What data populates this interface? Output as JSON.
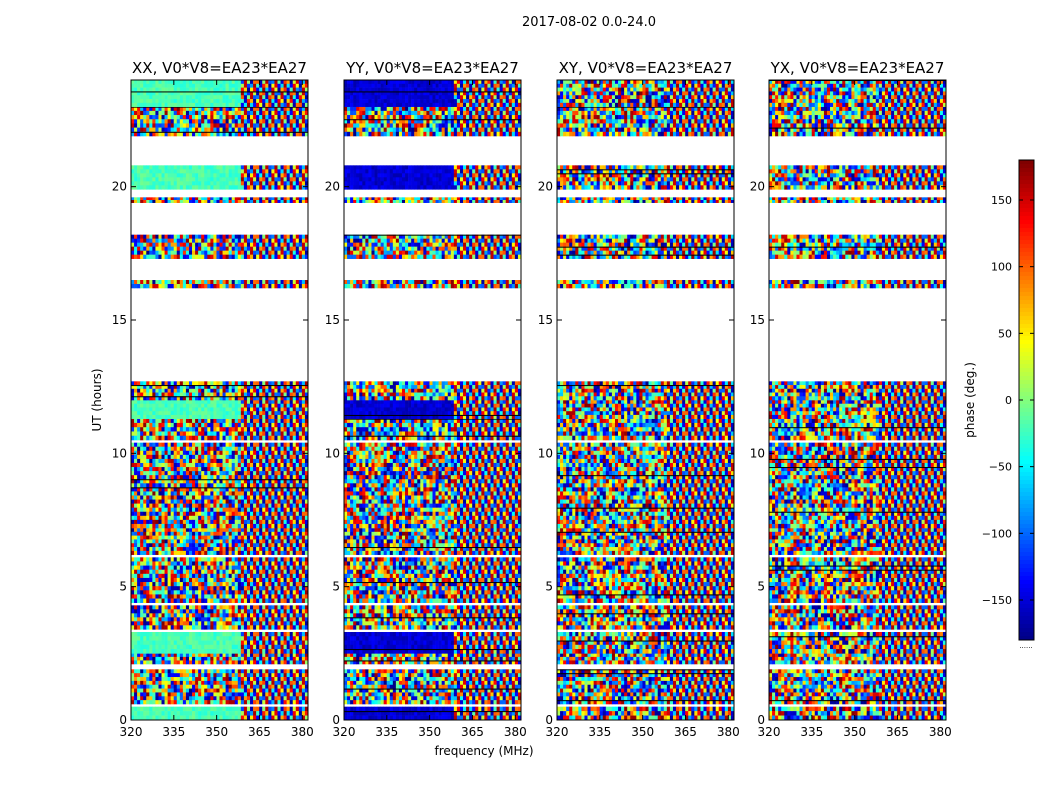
{
  "chart_data": {
    "type": "heatmap",
    "suptitle": "2017-08-02 0.0-24.0",
    "xlabel": "frequency (MHz)",
    "ylabel": "UT (hours)",
    "xlim": [
      320,
      382
    ],
    "ylim": [
      0,
      24
    ],
    "xticks": [
      "320",
      "335",
      "350",
      "365",
      "380"
    ],
    "yticks": [
      "0",
      "5",
      "10",
      "15",
      "20"
    ],
    "colorbar": {
      "label": "phase (deg.)",
      "range": [
        -180,
        180
      ],
      "ticks": [
        "−150",
        "−100",
        "−50",
        "0",
        "50",
        "100",
        "150"
      ],
      "colors": [
        "#00007f",
        "#0000ff",
        "#007fff",
        "#00ffff",
        "#7fff7f",
        "#ffff00",
        "#ff7f00",
        "#ff0000",
        "#7f0000"
      ],
      "extra_label": "......"
    },
    "panels": [
      {
        "title": "XX, V0*V8=EA23*EA27",
        "pol": "XX",
        "mode": "coherent",
        "base_phase": -20
      },
      {
        "title": "YY, V0*V8=EA23*EA27",
        "pol": "YY",
        "mode": "coherent",
        "base_phase": -150
      },
      {
        "title": "XY, V0*V8=EA23*EA27",
        "pol": "XY",
        "mode": "noise",
        "base_phase": 0
      },
      {
        "title": "YX, V0*V8=EA23*EA27",
        "pol": "YX",
        "mode": "noise",
        "base_phase": 0
      }
    ],
    "data_segments_UT_hours": [
      {
        "start": 0.0,
        "end": 0.5,
        "kind": "flat"
      },
      {
        "start": 0.6,
        "end": 1.9,
        "kind": "noise"
      },
      {
        "start": 2.1,
        "end": 2.5,
        "kind": "noise"
      },
      {
        "start": 2.5,
        "end": 3.3,
        "kind": "flat"
      },
      {
        "start": 3.4,
        "end": 4.3,
        "kind": "noise"
      },
      {
        "start": 4.4,
        "end": 6.1,
        "kind": "noise"
      },
      {
        "start": 6.2,
        "end": 7.2,
        "kind": "noise"
      },
      {
        "start": 7.2,
        "end": 10.4,
        "kind": "noise"
      },
      {
        "start": 10.5,
        "end": 11.3,
        "kind": "noise"
      },
      {
        "start": 11.3,
        "end": 12.0,
        "kind": "flat"
      },
      {
        "start": 12.0,
        "end": 12.7,
        "kind": "noise"
      },
      {
        "start": 16.2,
        "end": 16.5,
        "kind": "noise"
      },
      {
        "start": 17.3,
        "end": 18.2,
        "kind": "noise"
      },
      {
        "start": 19.4,
        "end": 19.6,
        "kind": "noise"
      },
      {
        "start": 19.9,
        "end": 20.8,
        "kind": "flat"
      },
      {
        "start": 21.9,
        "end": 23.0,
        "kind": "noise"
      },
      {
        "start": 23.0,
        "end": 24.0,
        "kind": "flat"
      }
    ]
  }
}
